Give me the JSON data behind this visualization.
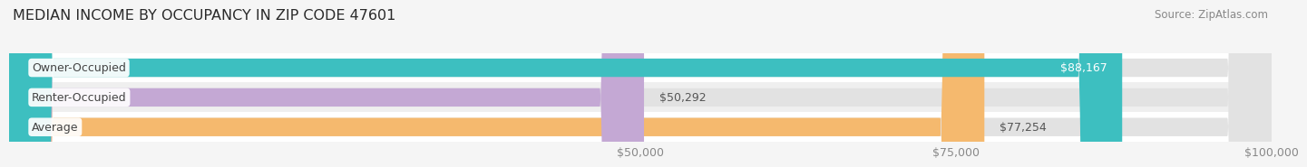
{
  "title": "MEDIAN INCOME BY OCCUPANCY IN ZIP CODE 47601",
  "source_text": "Source: ZipAtlas.com",
  "categories": [
    "Average",
    "Renter-Occupied",
    "Owner-Occupied"
  ],
  "values": [
    77254,
    50292,
    88167
  ],
  "bar_colors": [
    "#f5b96e",
    "#c4a8d4",
    "#3dbfc0"
  ],
  "value_colors": [
    "#555555",
    "#555555",
    "#ffffff"
  ],
  "value_inside": [
    false,
    false,
    true
  ],
  "xlim": [
    0,
    100000
  ],
  "xticks": [
    50000,
    75000,
    100000
  ],
  "xtick_labels": [
    "$50,000",
    "$75,000",
    "$100,000"
  ],
  "bar_height": 0.62,
  "title_fontsize": 11.5,
  "label_fontsize": 9,
  "value_fontsize": 9,
  "source_fontsize": 8.5,
  "bg_color": "#f5f5f5",
  "bar_bg_color": "#e2e2e2",
  "row_bg_colors": [
    "#ffffff",
    "#efefef",
    "#ffffff"
  ],
  "grid_color": "#d0d0d0",
  "label_text_color": "#444444",
  "tick_color": "#888888"
}
